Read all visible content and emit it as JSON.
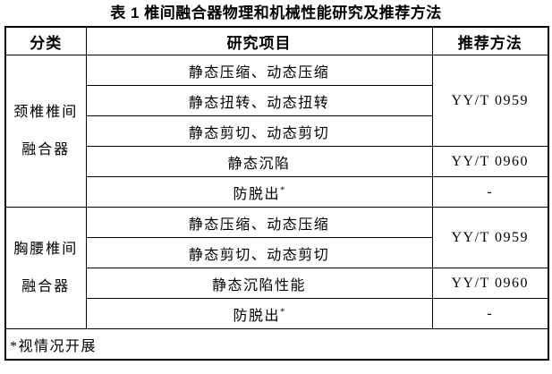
{
  "title": "表 1 椎间融合器物理和机械性能研究及推荐方法",
  "columns": {
    "category": "分类",
    "item": "研究项目",
    "method": "推荐方法"
  },
  "groups": [
    {
      "category_lines": [
        "颈椎椎间",
        "融合器"
      ],
      "rows": [
        {
          "item": "静态压缩、动态压缩",
          "method": "YY/T 0959"
        },
        {
          "item": "静态扭转、动态扭转"
        },
        {
          "item": "静态剪切、动态剪切"
        },
        {
          "item": "静态沉陷",
          "method": "YY/T 0960"
        },
        {
          "item": "防脱出",
          "item_sup": "*",
          "method": "-"
        }
      ]
    },
    {
      "category_lines": [
        "胸腰椎间",
        "融合器"
      ],
      "rows": [
        {
          "item": "静态压缩、动态压缩",
          "method": "YY/T 0959"
        },
        {
          "item": "静态剪切、动态剪切"
        },
        {
          "item": "静态沉陷性能",
          "method": "YY/T 0960"
        },
        {
          "item": "防脱出",
          "item_sup": "*",
          "method": "-"
        }
      ]
    }
  ],
  "footnote": "*视情况开展",
  "colors": {
    "text": "#000000",
    "border": "#000000",
    "background": "#ffffff"
  }
}
